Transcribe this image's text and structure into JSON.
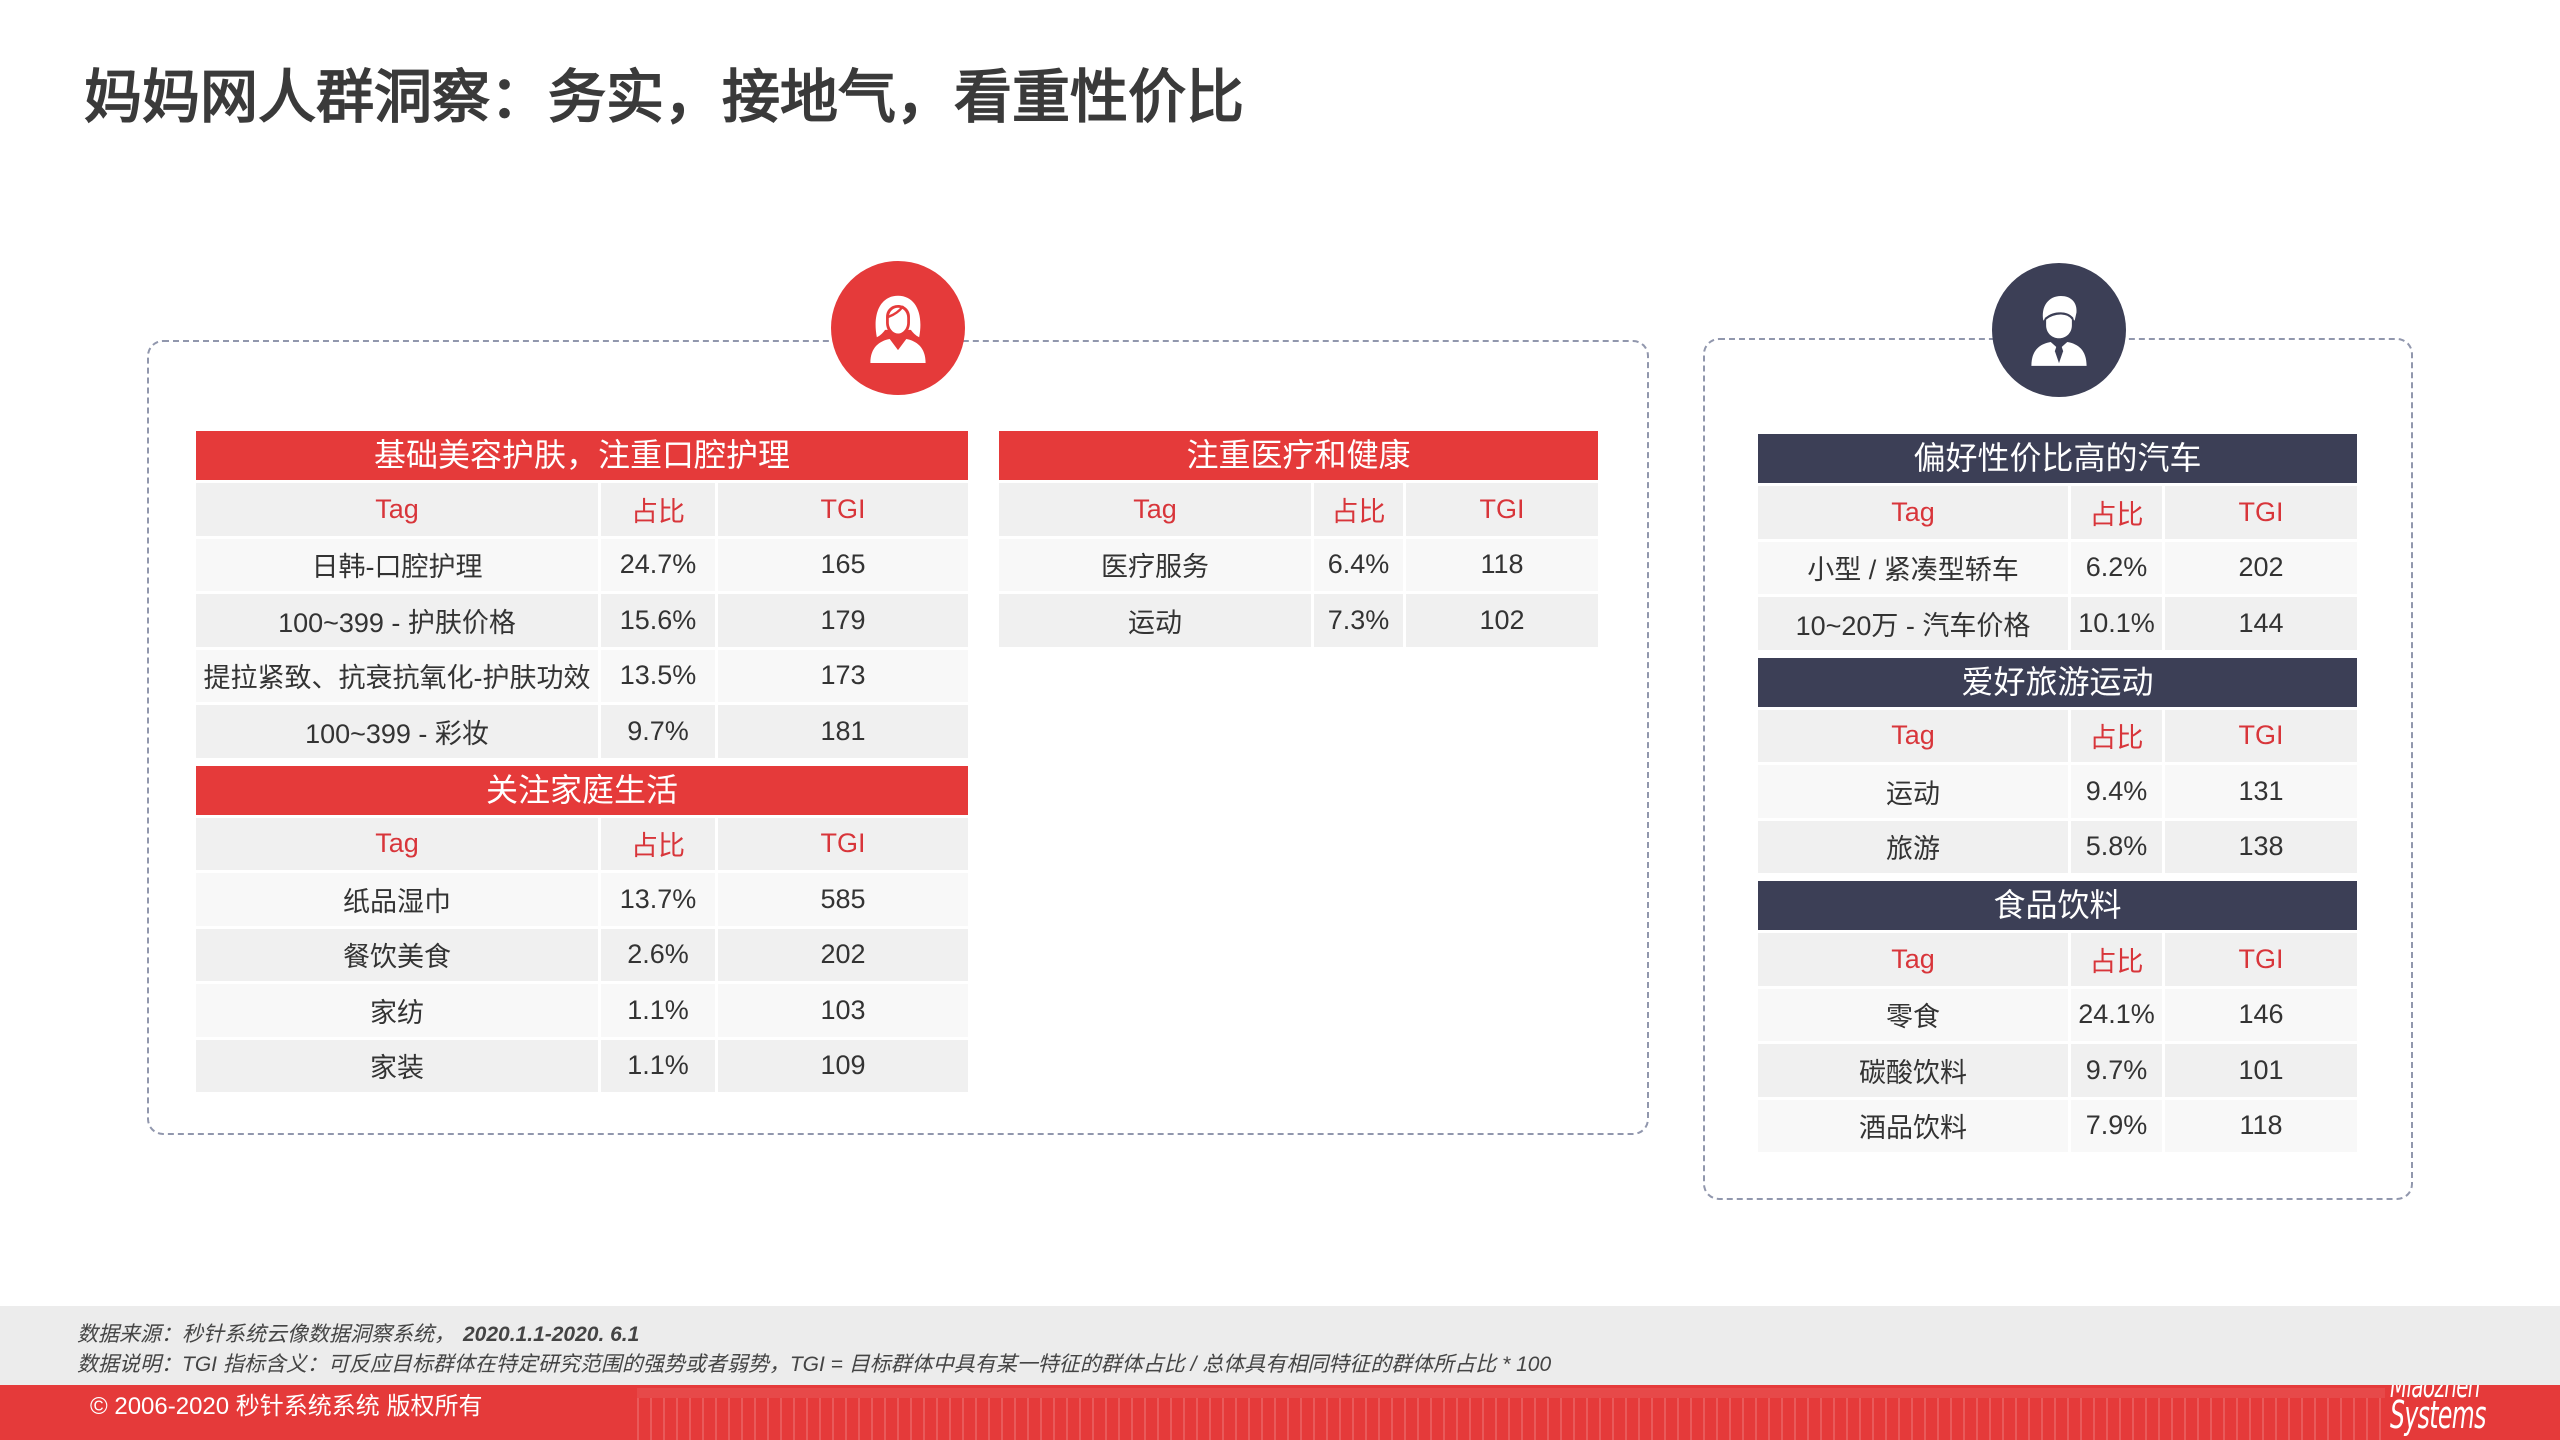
{
  "page": {
    "title": "妈妈网人群洞察：务实，接地气，看重性价比"
  },
  "colors": {
    "accent_red": "#e53a3a",
    "header_text_red": "#d8353a",
    "dark_navy": "#3c3f56",
    "panel_border": "#9197ad"
  },
  "female_panel": {
    "icon": "woman-avatar-icon",
    "left_column": [
      {
        "title": "基础美容护肤，注重口腔护理",
        "columns": [
          "Tag",
          "占比",
          "TGI"
        ],
        "rows": [
          [
            "日韩-口腔护理",
            "24.7%",
            "165"
          ],
          [
            "100~399 - 护肤价格",
            "15.6%",
            "179"
          ],
          [
            "提拉紧致、抗衰抗氧化-护肤功效",
            "13.5%",
            "173"
          ],
          [
            "100~399 - 彩妆",
            "9.7%",
            "181"
          ]
        ]
      },
      {
        "title": "关注家庭生活",
        "columns": [
          "Tag",
          "占比",
          "TGI"
        ],
        "rows": [
          [
            "纸品湿巾",
            "13.7%",
            "585"
          ],
          [
            "餐饮美食",
            "2.6%",
            "202"
          ],
          [
            "家纺",
            "1.1%",
            "103"
          ],
          [
            "家装",
            "1.1%",
            "109"
          ]
        ]
      }
    ],
    "right_column": [
      {
        "title": "注重医疗和健康",
        "columns": [
          "Tag",
          "占比",
          "TGI"
        ],
        "rows": [
          [
            "医疗服务",
            "6.4%",
            "118"
          ],
          [
            "运动",
            "7.3%",
            "102"
          ]
        ]
      }
    ]
  },
  "male_panel": {
    "icon": "man-avatar-icon",
    "column": [
      {
        "title": "偏好性价比高的汽车",
        "columns": [
          "Tag",
          "占比",
          "TGI"
        ],
        "rows": [
          [
            "小型 / 紧凑型轿车",
            "6.2%",
            "202"
          ],
          [
            "10~20万 - 汽车价格",
            "10.1%",
            "144"
          ]
        ]
      },
      {
        "title": "爱好旅游运动",
        "columns": [
          "Tag",
          "占比",
          "TGI"
        ],
        "rows": [
          [
            "运动",
            "9.4%",
            "131"
          ],
          [
            "旅游",
            "5.8%",
            "138"
          ]
        ]
      },
      {
        "title": "食品饮料",
        "columns": [
          "Tag",
          "占比",
          "TGI"
        ],
        "rows": [
          [
            "零食",
            "24.1%",
            "146"
          ],
          [
            "碳酸饮料",
            "9.7%",
            "101"
          ],
          [
            "酒品饮料",
            "7.9%",
            "118"
          ]
        ]
      }
    ]
  },
  "footer": {
    "source_label": "数据来源：秒针系统云像数据洞察系统，",
    "source_period": "2020.1.1-2020. 6.1",
    "note": "数据说明：TGI 指标含义：可反应目标群体在特定研究范围的强势或者弱势，TGI = 目标群体中具有某一特征的群体占比 / 总体具有相同特征的群体所占比 * 100",
    "copyright": "© 2006-2020 秒针系统系统 版权所有",
    "logo": [
      "Miaozhen",
      "Systems"
    ]
  }
}
